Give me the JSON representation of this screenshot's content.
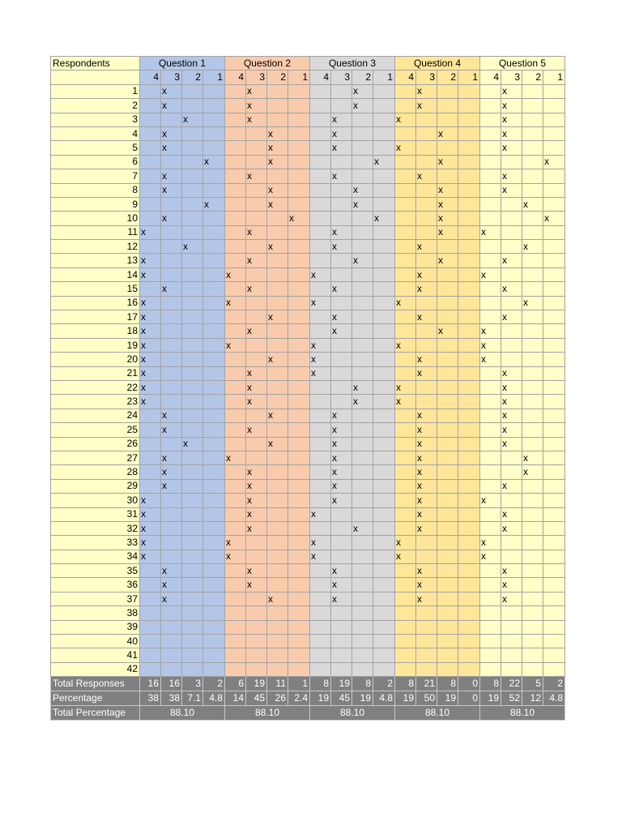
{
  "header": {
    "respondents_label": "Respondents",
    "questions": [
      "Question 1",
      "Question 2",
      "Question 3",
      "Question 4",
      "Question 5"
    ],
    "scale": [
      "4",
      "3",
      "2",
      "1"
    ]
  },
  "rows": [
    {
      "id": "1",
      "marks": [
        "",
        "x",
        "",
        "",
        "",
        "x",
        "",
        "",
        "",
        "",
        "x",
        "",
        "",
        "x",
        "",
        "",
        "",
        "x",
        "",
        ""
      ]
    },
    {
      "id": "2",
      "marks": [
        "",
        "x",
        "",
        "",
        "",
        "x",
        "",
        "",
        "",
        "",
        "x",
        "",
        "",
        "x",
        "",
        "",
        "",
        "x",
        "",
        ""
      ]
    },
    {
      "id": "3",
      "marks": [
        "",
        "",
        "x",
        "",
        "",
        "x",
        "",
        "",
        "",
        "x",
        "",
        "",
        "x",
        "",
        "",
        "",
        "",
        "x",
        "",
        ""
      ]
    },
    {
      "id": "4",
      "marks": [
        "",
        "x",
        "",
        "",
        "",
        "",
        "x",
        "",
        "",
        "x",
        "",
        "",
        "",
        "",
        "x",
        "",
        "",
        "x",
        "",
        ""
      ]
    },
    {
      "id": "5",
      "marks": [
        "",
        "x",
        "",
        "",
        "",
        "",
        "x",
        "",
        "",
        "x",
        "",
        "",
        "x",
        "",
        "",
        "",
        "",
        "x",
        "",
        ""
      ]
    },
    {
      "id": "6",
      "marks": [
        "",
        "",
        "",
        "x",
        "",
        "",
        "x",
        "",
        "",
        "",
        "",
        "x",
        "",
        "",
        "x",
        "",
        "",
        "",
        "",
        "x"
      ]
    },
    {
      "id": "7",
      "marks": [
        "",
        "x",
        "",
        "",
        "",
        "x",
        "",
        "",
        "",
        "x",
        "",
        "",
        "",
        "x",
        "",
        "",
        "",
        "x",
        "",
        ""
      ]
    },
    {
      "id": "8",
      "marks": [
        "",
        "x",
        "",
        "",
        "",
        "",
        "x",
        "",
        "",
        "",
        "x",
        "",
        "",
        "",
        "x",
        "",
        "",
        "x",
        "",
        ""
      ]
    },
    {
      "id": "9",
      "marks": [
        "",
        "",
        "",
        "x",
        "",
        "",
        "x",
        "",
        "",
        "",
        "x",
        "",
        "",
        "",
        "x",
        "",
        "",
        "",
        "x",
        ""
      ]
    },
    {
      "id": "10",
      "marks": [
        "",
        "x",
        "",
        "",
        "",
        "",
        "",
        "x",
        "",
        "",
        "",
        "x",
        "",
        "",
        "x",
        "",
        "",
        "",
        "",
        "x"
      ]
    },
    {
      "id": "11",
      "marks": [
        "x",
        "",
        "",
        "",
        "",
        "x",
        "",
        "",
        "",
        "x",
        "",
        "",
        "",
        "",
        "x",
        "",
        "x",
        "",
        "",
        ""
      ]
    },
    {
      "id": "12",
      "marks": [
        "",
        "",
        "x",
        "",
        "",
        "",
        "x",
        "",
        "",
        "x",
        "",
        "",
        "",
        "x",
        "",
        "",
        "",
        "",
        "x",
        ""
      ]
    },
    {
      "id": "13",
      "marks": [
        "x",
        "",
        "",
        "",
        "",
        "x",
        "",
        "",
        "",
        "",
        "x",
        "",
        "",
        "",
        "x",
        "",
        "",
        "x",
        "",
        ""
      ]
    },
    {
      "id": "14",
      "marks": [
        "x",
        "",
        "",
        "",
        "x",
        "",
        "",
        "",
        "x",
        "",
        "",
        "",
        "",
        "x",
        "",
        "",
        "x",
        "",
        "",
        ""
      ]
    },
    {
      "id": "15",
      "marks": [
        "",
        "x",
        "",
        "",
        "",
        "x",
        "",
        "",
        "",
        "x",
        "",
        "",
        "",
        "x",
        "",
        "",
        "",
        "x",
        "",
        ""
      ]
    },
    {
      "id": "16",
      "marks": [
        "x",
        "",
        "",
        "",
        "x",
        "",
        "",
        "",
        "x",
        "",
        "",
        "",
        "x",
        "",
        "",
        "",
        "",
        "",
        "x",
        ""
      ]
    },
    {
      "id": "17",
      "marks": [
        "x",
        "",
        "",
        "",
        "",
        "",
        "x",
        "",
        "",
        "x",
        "",
        "",
        "",
        "x",
        "",
        "",
        "",
        "x",
        "",
        ""
      ]
    },
    {
      "id": "18",
      "marks": [
        "x",
        "",
        "",
        "",
        "",
        "x",
        "",
        "",
        "",
        "x",
        "",
        "",
        "",
        "",
        "x",
        "",
        "x",
        "",
        "",
        ""
      ]
    },
    {
      "id": "19",
      "marks": [
        "x",
        "",
        "",
        "",
        "x",
        "",
        "",
        "",
        "x",
        "",
        "",
        "",
        "x",
        "",
        "",
        "",
        "x",
        "",
        "",
        ""
      ]
    },
    {
      "id": "20",
      "marks": [
        "x",
        "",
        "",
        "",
        "",
        "",
        "x",
        "",
        "x",
        "",
        "",
        "",
        "",
        "x",
        "",
        "",
        "x",
        "",
        "",
        ""
      ]
    },
    {
      "id": "21",
      "marks": [
        "x",
        "",
        "",
        "",
        "",
        "x",
        "",
        "",
        "x",
        "",
        "",
        "",
        "",
        "x",
        "",
        "",
        "",
        "x",
        "",
        ""
      ]
    },
    {
      "id": "22",
      "marks": [
        "x",
        "",
        "",
        "",
        "",
        "x",
        "",
        "",
        "",
        "",
        "x",
        "",
        "x",
        "",
        "",
        "",
        "",
        "x",
        "",
        ""
      ]
    },
    {
      "id": "23",
      "marks": [
        "x",
        "",
        "",
        "",
        "",
        "x",
        "",
        "",
        "",
        "",
        "x",
        "",
        "x",
        "",
        "",
        "",
        "",
        "x",
        "",
        ""
      ]
    },
    {
      "id": "24",
      "marks": [
        "",
        "x",
        "",
        "",
        "",
        "",
        "x",
        "",
        "",
        "x",
        "",
        "",
        "",
        "x",
        "",
        "",
        "",
        "x",
        "",
        ""
      ]
    },
    {
      "id": "25",
      "marks": [
        "",
        "x",
        "",
        "",
        "",
        "x",
        "",
        "",
        "",
        "x",
        "",
        "",
        "",
        "x",
        "",
        "",
        "",
        "x",
        "",
        ""
      ]
    },
    {
      "id": "26",
      "marks": [
        "",
        "",
        "x",
        "",
        "",
        "",
        "x",
        "",
        "",
        "x",
        "",
        "",
        "",
        "x",
        "",
        "",
        "",
        "x",
        "",
        ""
      ]
    },
    {
      "id": "27",
      "marks": [
        "",
        "x",
        "",
        "",
        "x",
        "",
        "",
        "",
        "",
        "x",
        "",
        "",
        "",
        "x",
        "",
        "",
        "",
        "",
        "x",
        ""
      ]
    },
    {
      "id": "28",
      "marks": [
        "",
        "x",
        "",
        "",
        "",
        "x",
        "",
        "",
        "",
        "x",
        "",
        "",
        "",
        "x",
        "",
        "",
        "",
        "",
        "x",
        ""
      ]
    },
    {
      "id": "29",
      "marks": [
        "",
        "x",
        "",
        "",
        "",
        "x",
        "",
        "",
        "",
        "x",
        "",
        "",
        "",
        "x",
        "",
        "",
        "",
        "x",
        "",
        ""
      ]
    },
    {
      "id": "30",
      "marks": [
        "x",
        "",
        "",
        "",
        "",
        "x",
        "",
        "",
        "",
        "x",
        "",
        "",
        "",
        "x",
        "",
        "",
        "x",
        "",
        "",
        ""
      ]
    },
    {
      "id": "31",
      "marks": [
        "x",
        "",
        "",
        "",
        "",
        "x",
        "",
        "",
        "x",
        "",
        "",
        "",
        "",
        "x",
        "",
        "",
        "",
        "x",
        "",
        ""
      ]
    },
    {
      "id": "32",
      "marks": [
        "x",
        "",
        "",
        "",
        "",
        "x",
        "",
        "",
        "",
        "",
        "x",
        "",
        "",
        "x",
        "",
        "",
        "",
        "x",
        "",
        ""
      ]
    },
    {
      "id": "33",
      "marks": [
        "x",
        "",
        "",
        "",
        "x",
        "",
        "",
        "",
        "x",
        "",
        "",
        "",
        "x",
        "",
        "",
        "",
        "x",
        "",
        "",
        ""
      ]
    },
    {
      "id": "34",
      "marks": [
        "x",
        "",
        "",
        "",
        "x",
        "",
        "",
        "",
        "x",
        "",
        "",
        "",
        "x",
        "",
        "",
        "",
        "x",
        "",
        "",
        ""
      ]
    },
    {
      "id": "35",
      "marks": [
        "",
        "x",
        "",
        "",
        "",
        "x",
        "",
        "",
        "",
        "x",
        "",
        "",
        "",
        "x",
        "",
        "",
        "",
        "x",
        "",
        ""
      ]
    },
    {
      "id": "36",
      "marks": [
        "",
        "x",
        "",
        "",
        "",
        "x",
        "",
        "",
        "",
        "x",
        "",
        "",
        "",
        "x",
        "",
        "",
        "",
        "x",
        "",
        ""
      ]
    },
    {
      "id": "37",
      "marks": [
        "",
        "x",
        "",
        "",
        "",
        "",
        "x",
        "",
        "",
        "x",
        "",
        "",
        "",
        "x",
        "",
        "",
        "",
        "x",
        "",
        ""
      ]
    },
    {
      "id": "38",
      "marks": [
        "",
        "",
        "",
        "",
        "",
        "",
        "",
        "",
        "",
        "",
        "",
        "",
        "",
        "",
        "",
        "",
        "",
        "",
        "",
        ""
      ]
    },
    {
      "id": "39",
      "marks": [
        "",
        "",
        "",
        "",
        "",
        "",
        "",
        "",
        "",
        "",
        "",
        "",
        "",
        "",
        "",
        "",
        "",
        "",
        "",
        ""
      ]
    },
    {
      "id": "40",
      "marks": [
        "",
        "",
        "",
        "",
        "",
        "",
        "",
        "",
        "",
        "",
        "",
        "",
        "",
        "",
        "",
        "",
        "",
        "",
        "",
        ""
      ]
    },
    {
      "id": "41",
      "marks": [
        "",
        "",
        "",
        "",
        "",
        "",
        "",
        "",
        "",
        "",
        "",
        "",
        "",
        "",
        "",
        "",
        "",
        "",
        "",
        ""
      ]
    },
    {
      "id": "42",
      "marks": [
        "",
        "",
        "",
        "",
        "",
        "",
        "",
        "",
        "",
        "",
        "",
        "",
        "",
        "",
        "",
        "",
        "",
        "",
        "",
        ""
      ]
    }
  ],
  "totals": {
    "total_responses_label": "Total Responses",
    "total_responses": [
      "16",
      "16",
      "3",
      "2",
      "6",
      "19",
      "11",
      "1",
      "8",
      "19",
      "8",
      "2",
      "8",
      "21",
      "8",
      "0",
      "8",
      "22",
      "5",
      "2"
    ],
    "percentage_label": "Percentage",
    "percentage": [
      "38",
      "38",
      "7.1",
      "4.8",
      "14",
      "45",
      "26",
      "2.4",
      "19",
      "45",
      "19",
      "4.8",
      "19",
      "50",
      "19",
      "0",
      "19",
      "52",
      "12",
      "4.8"
    ],
    "total_percentage_label": "Total Percentage",
    "total_percentage": [
      "88.10",
      "88.10",
      "88.10",
      "88.10",
      "88.10"
    ]
  },
  "colors": {
    "respondents_bg": "#ffffc7",
    "q1": "#b4c6e7",
    "q2": "#f8cbad",
    "q3": "#d9d9d9",
    "q4": "#ffe699",
    "q5": "#ffffc7",
    "totals_bg": "#808080"
  }
}
